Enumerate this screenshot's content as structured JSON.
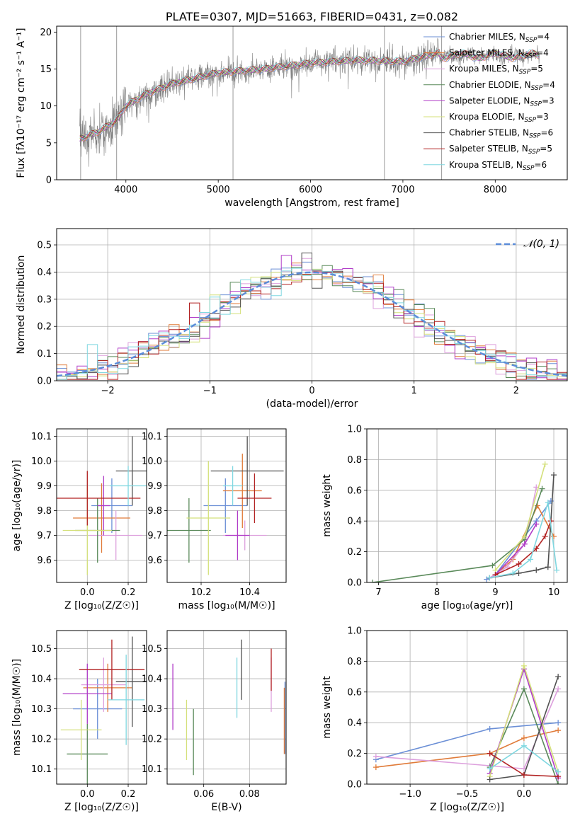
{
  "colors": {
    "chabrier_miles": "#6b8fd6",
    "salpeter_miles": "#e07b39",
    "kroupa_miles": "#dda0dd",
    "chabrier_elodie": "#5a8a5a",
    "salpeter_elodie": "#b03cc8",
    "kroupa_elodie": "#d4e07a",
    "chabrier_stelib": "#505050",
    "salpeter_stelib": "#b22222",
    "kroupa_stelib": "#7fd7e0",
    "gaussian": "#5b8cd9",
    "grid": "#b0b0b0",
    "data": "#808080"
  },
  "chart_data": [
    {
      "id": "spectrum",
      "type": "line",
      "title": "PLATE=0307, MJD=51663, FIBERID=0431, z=0.082",
      "xlabel": "wavelength [Angstrom, rest frame]",
      "ylabel": "Flux [fλ10⁻¹⁷ erg cm⁻² s⁻¹ A⁻¹]",
      "xlim": [
        3250,
        8780
      ],
      "ylim": [
        0,
        20.8
      ],
      "xticks": [
        4000,
        5000,
        6000,
        7000,
        8000
      ],
      "yticks": [
        0,
        5,
        10,
        15,
        20
      ],
      "grid": false,
      "legend_position": "top-right",
      "legend": [
        {
          "label": "Chabrier MILES, N",
          "sub": "SSP",
          "tail": "=4",
          "color_key": "chabrier_miles"
        },
        {
          "label": "Salpeter MILES, N",
          "sub": "SSP",
          "tail": "=4",
          "color_key": "salpeter_miles"
        },
        {
          "label": "Kroupa MILES, N",
          "sub": "SSP",
          "tail": "=5",
          "color_key": "kroupa_miles"
        },
        {
          "label": "Chabrier ELODIE, N",
          "sub": "SSP",
          "tail": "=4",
          "color_key": "chabrier_elodie"
        },
        {
          "label": "Salpeter ELODIE, N",
          "sub": "SSP",
          "tail": "=3",
          "color_key": "salpeter_elodie"
        },
        {
          "label": "Kroupa ELODIE, N",
          "sub": "SSP",
          "tail": "=3",
          "color_key": "kroupa_elodie"
        },
        {
          "label": "Chabrier STELIB, N",
          "sub": "SSP",
          "tail": "=6",
          "color_key": "chabrier_stelib"
        },
        {
          "label": "Salpeter STELIB, N",
          "sub": "SSP",
          "tail": "=5",
          "color_key": "salpeter_stelib"
        },
        {
          "label": "Kroupa STELIB, N",
          "sub": "SSP",
          "tail": "=6",
          "color_key": "kroupa_stelib"
        }
      ],
      "continuum": {
        "x": [
          3500,
          3700,
          3900,
          4000,
          4200,
          4500,
          5000,
          5500,
          6000,
          6500,
          7000,
          7400
        ],
        "y": [
          5.5,
          6.5,
          8.0,
          10.0,
          11.5,
          13.0,
          14.5,
          15.0,
          15.8,
          16.2,
          16.0,
          17.2
        ]
      },
      "model_x_end": 8480
    },
    {
      "id": "residuals",
      "type": "line",
      "xlabel": "(data-model)/error",
      "ylabel": "Normed distribution",
      "xlim": [
        -2.5,
        2.5
      ],
      "ylim": [
        0,
        0.56
      ],
      "xticks": [
        -2,
        -1,
        0,
        1,
        2
      ],
      "yticks": [
        0.0,
        0.1,
        0.2,
        0.3,
        0.4,
        0.5
      ],
      "grid": true,
      "legend_position": "top-right",
      "legend_label": "𝒩(0, 1)",
      "gaussian": {
        "mean": 0,
        "sigma": 1
      }
    },
    {
      "id": "age_vs_z",
      "type": "scatter",
      "xlabel": "Z [log₁₀(Z/Z☉)]",
      "ylabel": "age  [log₁₀(age/yr)]",
      "xlim": [
        -0.15,
        0.29
      ],
      "ylim": [
        9.51,
        10.13
      ],
      "xticks": [
        0.0,
        0.2
      ],
      "yticks": [
        9.6,
        9.7,
        9.8,
        9.9,
        10.0,
        10.1
      ],
      "grid": true,
      "points": [
        {
          "x": 0.12,
          "xerr": 0.1,
          "y": 9.82,
          "yerr": 0.11,
          "color_key": "chabrier_miles"
        },
        {
          "x": 0.07,
          "xerr": 0.14,
          "y": 9.77,
          "yerr": 0.14,
          "color_key": "salpeter_miles"
        },
        {
          "x": 0.14,
          "xerr": 0.13,
          "y": 9.7,
          "yerr": 0.1,
          "color_key": "kroupa_miles"
        },
        {
          "x": 0.05,
          "xerr": 0.11,
          "y": 9.72,
          "yerr": 0.13,
          "color_key": "chabrier_elodie"
        },
        {
          "x": 0.08,
          "xerr": 0.03,
          "y": 9.82,
          "yerr": 0.12,
          "color_key": "salpeter_elodie"
        },
        {
          "x": 0.0,
          "xerr": 0.12,
          "y": 9.72,
          "yerr": 0.18,
          "color_key": "kroupa_elodie"
        },
        {
          "x": 0.22,
          "xerr": 0.08,
          "y": 9.96,
          "yerr": 0.14,
          "color_key": "chabrier_stelib"
        },
        {
          "x": 0.0,
          "xerr": 0.26,
          "y": 9.85,
          "yerr": 0.11,
          "color_key": "salpeter_stelib"
        },
        {
          "x": 0.2,
          "xerr": 0.09,
          "y": 9.9,
          "yerr": 0.08,
          "color_key": "kroupa_stelib"
        }
      ]
    },
    {
      "id": "age_vs_mass",
      "type": "scatter",
      "xlabel": "mass [log₁₀(M/M☉)]",
      "ylabel": "",
      "xlim": [
        10.06,
        10.55
      ],
      "ylim": [
        9.51,
        10.13
      ],
      "xticks": [
        10.2,
        10.4
      ],
      "yticks": [
        9.6,
        9.7,
        9.8,
        9.9,
        10.0,
        10.1
      ],
      "grid": true,
      "points": [
        {
          "x": 10.3,
          "xerr": 0.09,
          "y": 9.82,
          "yerr": 0.11,
          "color_key": "chabrier_miles"
        },
        {
          "x": 10.37,
          "xerr": 0.08,
          "y": 9.88,
          "yerr": 0.15,
          "color_key": "salpeter_miles"
        },
        {
          "x": 10.38,
          "xerr": 0.09,
          "y": 9.7,
          "yerr": 0.06,
          "color_key": "kroupa_miles"
        },
        {
          "x": 10.15,
          "xerr": 0.09,
          "y": 9.72,
          "yerr": 0.13,
          "color_key": "chabrier_elodie"
        },
        {
          "x": 10.35,
          "xerr": 0.05,
          "y": 9.7,
          "yerr": 0.1,
          "color_key": "salpeter_elodie"
        },
        {
          "x": 10.23,
          "xerr": 0.09,
          "y": 9.77,
          "yerr": 0.23,
          "color_key": "kroupa_elodie"
        },
        {
          "x": 10.39,
          "xerr": 0.15,
          "y": 9.96,
          "yerr": 0.14,
          "color_key": "chabrier_stelib"
        },
        {
          "x": 10.42,
          "xerr": 0.07,
          "y": 9.85,
          "yerr": 0.1,
          "color_key": "salpeter_stelib"
        },
        {
          "x": 10.33,
          "xerr": 0.04,
          "y": 9.9,
          "yerr": 0.08,
          "color_key": "kroupa_stelib"
        }
      ]
    },
    {
      "id": "weight_vs_age",
      "type": "line",
      "xlabel": "age  [log₁₀(age/yr)]",
      "ylabel": "mass weight",
      "xlim": [
        6.8,
        10.23
      ],
      "ylim": [
        0,
        1
      ],
      "xticks": [
        7,
        8,
        9,
        10
      ],
      "yticks": [
        0.0,
        0.2,
        0.4,
        0.6,
        0.8,
        1.0
      ],
      "grid": true,
      "series": [
        {
          "color_key": "chabrier_miles",
          "x": [
            8.85,
            9.0,
            9.7,
            9.95
          ],
          "y": [
            0.02,
            0.05,
            0.4,
            0.53
          ]
        },
        {
          "color_key": "salpeter_miles",
          "x": [
            9.0,
            9.3,
            9.72,
            10.0
          ],
          "y": [
            0.05,
            0.15,
            0.5,
            0.3
          ]
        },
        {
          "color_key": "kroupa_miles",
          "x": [
            8.9,
            9.2,
            9.5,
            9.7
          ],
          "y": [
            0.03,
            0.1,
            0.25,
            0.62
          ]
        },
        {
          "color_key": "chabrier_elodie",
          "x": [
            6.9,
            8.95,
            9.5,
            9.8
          ],
          "y": [
            0.0,
            0.11,
            0.28,
            0.61
          ]
        },
        {
          "color_key": "salpeter_elodie",
          "x": [
            9.0,
            9.5,
            9.7
          ],
          "y": [
            0.05,
            0.25,
            0.38
          ]
        },
        {
          "color_key": "kroupa_elodie",
          "x": [
            9.0,
            9.5,
            9.85
          ],
          "y": [
            0.08,
            0.3,
            0.77
          ]
        },
        {
          "color_key": "chabrier_stelib",
          "x": [
            8.9,
            9.4,
            9.7,
            9.9,
            10.0
          ],
          "y": [
            0.03,
            0.06,
            0.08,
            0.1,
            0.7
          ]
        },
        {
          "color_key": "salpeter_stelib",
          "x": [
            9.0,
            9.4,
            9.7,
            9.85,
            9.95
          ],
          "y": [
            0.05,
            0.12,
            0.22,
            0.3,
            0.4
          ]
        },
        {
          "color_key": "kroupa_stelib",
          "x": [
            8.9,
            9.3,
            9.6,
            9.9,
            10.05
          ],
          "y": [
            0.03,
            0.06,
            0.15,
            0.52,
            0.08
          ]
        }
      ]
    },
    {
      "id": "mass_vs_z",
      "type": "scatter",
      "xlabel": "Z [log₁₀(Z/Z☉)]",
      "ylabel": "mass [log₁₀(M/M☉)]",
      "xlim": [
        -0.15,
        0.29
      ],
      "ylim": [
        10.05,
        10.56
      ],
      "xticks": [
        0.0,
        0.2
      ],
      "yticks": [
        10.1,
        10.2,
        10.3,
        10.4,
        10.5
      ],
      "grid": true,
      "points": [
        {
          "x": 0.05,
          "xerr": 0.12,
          "y": 10.3,
          "yerr": 0.1,
          "color_key": "chabrier_miles"
        },
        {
          "x": 0.1,
          "xerr": 0.12,
          "y": 10.37,
          "yerr": 0.08,
          "color_key": "salpeter_miles"
        },
        {
          "x": 0.08,
          "xerr": 0.11,
          "y": 10.38,
          "yerr": 0.09,
          "color_key": "kroupa_miles"
        },
        {
          "x": 0.0,
          "xerr": 0.1,
          "y": 10.15,
          "yerr": 0.1,
          "color_key": "chabrier_elodie"
        },
        {
          "x": 0.0,
          "xerr": 0.12,
          "y": 10.35,
          "yerr": 0.1,
          "color_key": "salpeter_elodie"
        },
        {
          "x": -0.03,
          "xerr": 0.1,
          "y": 10.23,
          "yerr": 0.1,
          "color_key": "kroupa_elodie"
        },
        {
          "x": 0.22,
          "xerr": 0.08,
          "y": 10.39,
          "yerr": 0.15,
          "color_key": "chabrier_stelib"
        },
        {
          "x": 0.12,
          "xerr": 0.16,
          "y": 10.43,
          "yerr": 0.1,
          "color_key": "salpeter_stelib"
        },
        {
          "x": 0.19,
          "xerr": 0.09,
          "y": 10.33,
          "yerr": 0.15,
          "color_key": "kroupa_stelib"
        }
      ]
    },
    {
      "id": "mass_vs_ebv",
      "type": "scatter",
      "xlabel": "E(B-V)",
      "ylabel": "",
      "xlim": [
        0.044,
        0.096
      ],
      "ylim": [
        10.05,
        10.56
      ],
      "xticks": [
        0.06,
        0.08
      ],
      "yticks": [
        10.1,
        10.2,
        10.3,
        10.4,
        10.5
      ],
      "grid": true,
      "points": [
        {
          "x": 0.0955,
          "y": 10.27,
          "yerr": 0.12,
          "color_key": "chabrier_miles"
        },
        {
          "x": 0.0952,
          "y": 10.26,
          "yerr": 0.11,
          "color_key": "salpeter_miles"
        },
        {
          "x": 0.0895,
          "y": 10.38,
          "yerr": 0.09,
          "color_key": "kroupa_miles"
        },
        {
          "x": 0.0555,
          "y": 10.19,
          "yerr": 0.11,
          "color_key": "chabrier_elodie"
        },
        {
          "x": 0.0465,
          "y": 10.34,
          "yerr": 0.11,
          "color_key": "salpeter_elodie"
        },
        {
          "x": 0.0525,
          "y": 10.23,
          "yerr": 0.1,
          "color_key": "kroupa_elodie"
        },
        {
          "x": 0.0765,
          "y": 10.43,
          "yerr": 0.1,
          "color_key": "chabrier_stelib"
        },
        {
          "x": 0.0895,
          "y": 10.43,
          "yerr": 0.07,
          "color_key": "salpeter_stelib"
        },
        {
          "x": 0.0745,
          "y": 10.37,
          "yerr": 0.1,
          "color_key": "kroupa_stelib"
        }
      ]
    },
    {
      "id": "weight_vs_z",
      "type": "line",
      "xlabel": "Z [log₁₀(Z/Z☉)]",
      "ylabel": "mass weight",
      "xlim": [
        -1.38,
        0.38
      ],
      "ylim": [
        0,
        1
      ],
      "xticks": [
        -1.0,
        -0.5,
        0.0
      ],
      "yticks": [
        0.0,
        0.2,
        0.4,
        0.6,
        0.8,
        1.0
      ],
      "grid": true,
      "series": [
        {
          "color_key": "chabrier_miles",
          "x": [
            -1.3,
            -0.3,
            0.3
          ],
          "y": [
            0.16,
            0.36,
            0.4
          ]
        },
        {
          "color_key": "salpeter_miles",
          "x": [
            -1.3,
            -0.3,
            0.0,
            0.3
          ],
          "y": [
            0.11,
            0.2,
            0.3,
            0.35
          ]
        },
        {
          "color_key": "kroupa_miles",
          "x": [
            -1.3,
            -0.3,
            0.0,
            0.3
          ],
          "y": [
            0.18,
            0.12,
            0.1,
            0.62
          ]
        },
        {
          "color_key": "chabrier_elodie",
          "x": [
            -0.3,
            0.0,
            0.3
          ],
          "y": [
            0.11,
            0.62,
            0.0
          ]
        },
        {
          "color_key": "salpeter_elodie",
          "x": [
            -0.3,
            0.0,
            0.3
          ],
          "y": [
            0.07,
            0.75,
            0.04
          ]
        },
        {
          "color_key": "kroupa_elodie",
          "x": [
            -0.3,
            0.0,
            0.3
          ],
          "y": [
            0.05,
            0.77,
            0.08
          ]
        },
        {
          "color_key": "chabrier_stelib",
          "x": [
            -0.3,
            0.0,
            0.3
          ],
          "y": [
            0.03,
            0.06,
            0.7
          ]
        },
        {
          "color_key": "salpeter_stelib",
          "x": [
            -0.3,
            0.0,
            0.3
          ],
          "y": [
            0.2,
            0.06,
            0.05
          ]
        },
        {
          "color_key": "kroupa_stelib",
          "x": [
            -0.3,
            0.0,
            0.3
          ],
          "y": [
            0.1,
            0.25,
            0.08
          ]
        }
      ]
    }
  ]
}
